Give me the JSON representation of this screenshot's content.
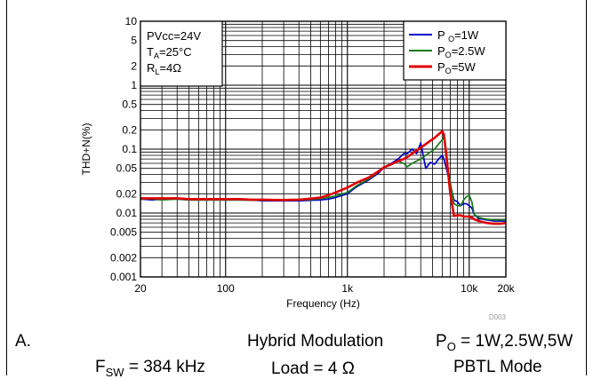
{
  "chart_data": {
    "type": "line",
    "xlabel": "Frequency (Hz)",
    "ylabel": "THD+N(%)",
    "xscale": "log",
    "yscale": "log",
    "xlim": [
      20,
      20000
    ],
    "ylim": [
      0.001,
      10
    ],
    "grid": true,
    "x_ticks": [
      {
        "value": 20,
        "label": "20"
      },
      {
        "value": 100,
        "label": "100"
      },
      {
        "value": 1000,
        "label": "1k"
      },
      {
        "value": 10000,
        "label": "10k"
      },
      {
        "value": 20000,
        "label": "20k"
      }
    ],
    "y_ticks": [
      {
        "value": 0.001,
        "label": "0.001"
      },
      {
        "value": 0.002,
        "label": "0.002"
      },
      {
        "value": 0.005,
        "label": "0.005"
      },
      {
        "value": 0.01,
        "label": "0.01"
      },
      {
        "value": 0.02,
        "label": "0.02"
      },
      {
        "value": 0.05,
        "label": "0.05"
      },
      {
        "value": 0.1,
        "label": "0.1"
      },
      {
        "value": 0.2,
        "label": "0.2"
      },
      {
        "value": 0.5,
        "label": "0.5"
      },
      {
        "value": 1,
        "label": "1"
      },
      {
        "value": 2,
        "label": "2"
      },
      {
        "value": 5,
        "label": "5"
      },
      {
        "value": 10,
        "label": "10"
      }
    ],
    "conditions": [
      {
        "main": "PVcc=24V",
        "sub": ""
      },
      {
        "main": "T",
        "sub": "A",
        "suffix": "=25°C"
      },
      {
        "main": "R",
        "sub": "L",
        "suffix": "=4Ω"
      }
    ],
    "legend_position": "top-right",
    "series": [
      {
        "name": "P O=1W",
        "legend_main": "P ",
        "legend_sub": "O",
        "legend_suffix": "=1W",
        "color": "#0000cc",
        "x": [
          20,
          25,
          30,
          40,
          50,
          60,
          80,
          100,
          130,
          160,
          200,
          250,
          300,
          400,
          500,
          600,
          700,
          800,
          1000,
          1200,
          1500,
          1800,
          2000,
          2300,
          2600,
          2900,
          3100,
          3400,
          3700,
          4000,
          4400,
          4800,
          5200,
          5600,
          6000,
          6200,
          6500,
          7000,
          7500,
          8000,
          8500,
          9000,
          9500,
          10000,
          10500,
          11000,
          12000,
          13000,
          14000,
          16000,
          18000,
          20000
        ],
        "y": [
          0.0165,
          0.016,
          0.0165,
          0.0165,
          0.016,
          0.016,
          0.016,
          0.016,
          0.016,
          0.016,
          0.0155,
          0.0155,
          0.0155,
          0.0155,
          0.0158,
          0.016,
          0.0165,
          0.0175,
          0.02,
          0.026,
          0.033,
          0.042,
          0.052,
          0.06,
          0.07,
          0.085,
          0.085,
          0.1,
          0.085,
          0.125,
          0.05,
          0.062,
          0.058,
          0.07,
          0.08,
          0.07,
          0.05,
          0.028,
          0.016,
          0.015,
          0.013,
          0.014,
          0.014,
          0.013,
          0.012,
          0.0095,
          0.0082,
          0.008,
          0.0078,
          0.0075,
          0.0075,
          0.0075
        ]
      },
      {
        "name": "PO=2.5W",
        "legend_main": "P",
        "legend_sub": "O",
        "legend_suffix": "=2.5W",
        "color": "#1a7a1a",
        "x": [
          20,
          25,
          30,
          40,
          50,
          60,
          80,
          100,
          130,
          160,
          200,
          250,
          300,
          400,
          500,
          600,
          700,
          800,
          1000,
          1200,
          1500,
          1800,
          2000,
          2300,
          2600,
          2900,
          3100,
          3400,
          3700,
          4000,
          4400,
          4800,
          5200,
          5600,
          6000,
          6200,
          6500,
          7000,
          7500,
          8000,
          8500,
          9000,
          9500,
          10000,
          10500,
          11000,
          12000,
          13000,
          14000,
          16000,
          18000,
          20000
        ],
        "y": [
          0.0165,
          0.0165,
          0.016,
          0.0165,
          0.016,
          0.016,
          0.016,
          0.016,
          0.016,
          0.0158,
          0.0158,
          0.0158,
          0.0158,
          0.016,
          0.0162,
          0.0168,
          0.0175,
          0.0185,
          0.021,
          0.027,
          0.034,
          0.044,
          0.053,
          0.057,
          0.065,
          0.06,
          0.053,
          0.06,
          0.065,
          0.07,
          0.08,
          0.09,
          0.1,
          0.12,
          0.14,
          0.16,
          0.07,
          0.03,
          0.014,
          0.013,
          0.013,
          0.016,
          0.018,
          0.019,
          0.015,
          0.0095,
          0.0085,
          0.0082,
          0.008,
          0.0078,
          0.0078,
          0.0078
        ]
      },
      {
        "name": "PO=5W",
        "legend_main": "P",
        "legend_sub": "O",
        "legend_suffix": "=5W",
        "color": "#e00000",
        "x": [
          20,
          25,
          30,
          40,
          50,
          60,
          80,
          100,
          130,
          160,
          200,
          250,
          300,
          400,
          500,
          600,
          700,
          800,
          1000,
          1200,
          1500,
          1800,
          2000,
          2300,
          2600,
          2900,
          3100,
          3400,
          3700,
          4000,
          4400,
          4800,
          5200,
          5600,
          6000,
          6200,
          6500,
          7000,
          7500,
          8000,
          8500,
          9000,
          9500,
          10000,
          10500,
          11000,
          12000,
          13000,
          14000,
          16000,
          18000,
          20000
        ],
        "y": [
          0.017,
          0.017,
          0.017,
          0.017,
          0.0165,
          0.0165,
          0.0165,
          0.0165,
          0.0165,
          0.0162,
          0.0162,
          0.016,
          0.016,
          0.0162,
          0.0168,
          0.0175,
          0.019,
          0.021,
          0.025,
          0.03,
          0.036,
          0.045,
          0.052,
          0.058,
          0.065,
          0.07,
          0.075,
          0.085,
          0.095,
          0.105,
          0.12,
          0.135,
          0.15,
          0.17,
          0.19,
          0.17,
          0.08,
          0.02,
          0.009,
          0.0092,
          0.0092,
          0.0088,
          0.0088,
          0.0088,
          0.0085,
          0.008,
          0.0075,
          0.0072,
          0.007,
          0.0068,
          0.0068,
          0.007
        ]
      }
    ]
  },
  "figure_id": "D003",
  "caption": {
    "label": "A.",
    "modulation": "Hybrid Modulation",
    "power_main": "P",
    "power_sub": "O",
    "power_suffix": " = 1W,2.5W,5W",
    "fsw_main": "F",
    "fsw_sub": "SW",
    "fsw_suffix": " = 384 kHz",
    "load": "Load = 4 Ω",
    "mode": "PBTL Mode"
  }
}
